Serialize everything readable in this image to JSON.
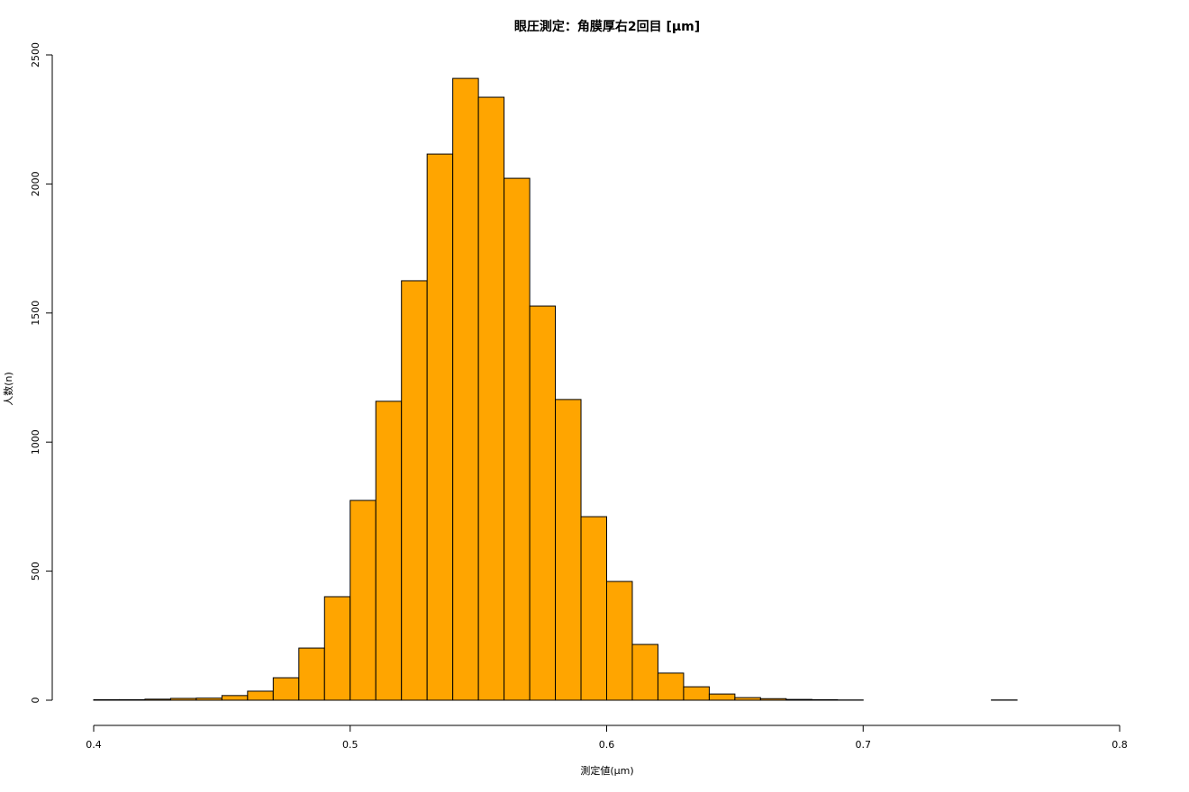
{
  "chart_data": {
    "type": "histogram",
    "title": "眼圧測定：角膜厚右2回目 [μm]",
    "x_label": "測定値(μm)",
    "y_label": "人数(n)",
    "bins": [
      0.4,
      0.41,
      0.42,
      0.43,
      0.44,
      0.45,
      0.46,
      0.47,
      0.48,
      0.49,
      0.5,
      0.51,
      0.52,
      0.53,
      0.54,
      0.55,
      0.56,
      0.57,
      0.58,
      0.59,
      0.6,
      0.61,
      0.62,
      0.63,
      0.64,
      0.65,
      0.66,
      0.67,
      0.68,
      0.69,
      0.7,
      0.71,
      0.72,
      0.73,
      0.74,
      0.75,
      0.76
    ],
    "values": [
      2,
      2,
      4,
      7,
      8,
      18,
      35,
      87,
      202,
      401,
      774,
      1158,
      1625,
      2116,
      2409,
      2336,
      2022,
      1527,
      1165,
      711,
      460,
      216,
      105,
      52,
      24,
      10,
      6,
      3,
      2,
      1,
      0,
      0,
      0,
      0,
      0,
      1
    ],
    "color": "#FFA500",
    "xlim": [
      0.4,
      0.8
    ],
    "xticks": [
      0.4,
      0.5,
      0.6,
      0.7,
      0.8
    ],
    "ylim": [
      0,
      2500
    ],
    "yticks": [
      0,
      500,
      1000,
      1500,
      2000,
      2500
    ]
  }
}
